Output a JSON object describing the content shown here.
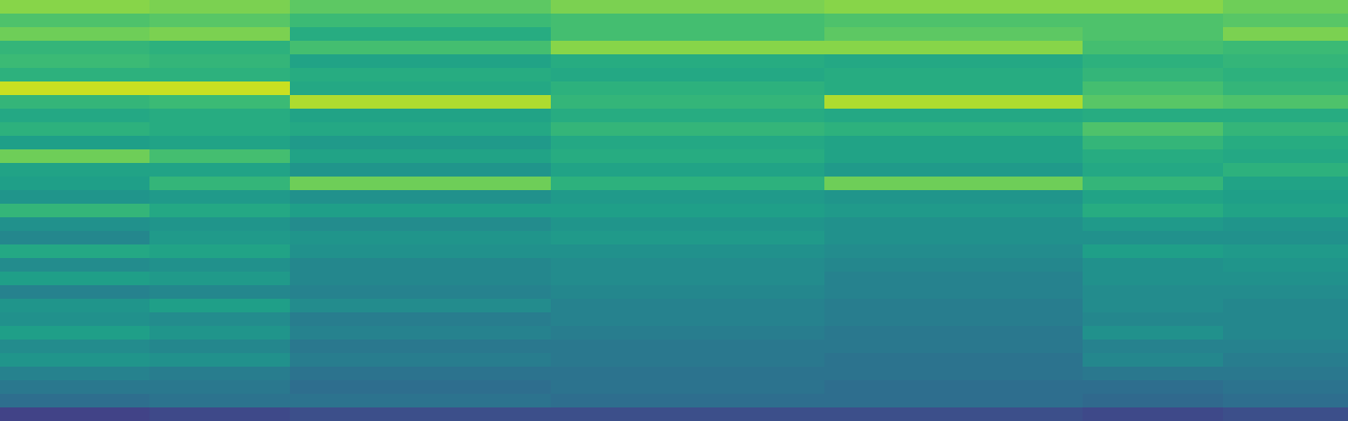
{
  "chart_data": {
    "type": "heatmap",
    "x": [
      0,
      165,
      320,
      608,
      910,
      1195,
      1350,
      1488
    ],
    "y": [
      0,
      15,
      30,
      45,
      60,
      75,
      90,
      105,
      120,
      135,
      150,
      165,
      180,
      195,
      210,
      225,
      240,
      255,
      270,
      285,
      300,
      315,
      330,
      345,
      360,
      375,
      390,
      405,
      420,
      435,
      450,
      465
    ],
    "cells": [
      [
        0.82,
        0.8,
        0.75,
        0.8,
        0.82,
        0.82,
        0.78
      ],
      [
        0.72,
        0.74,
        0.68,
        0.7,
        0.72,
        0.72,
        0.74
      ],
      [
        0.78,
        0.8,
        0.62,
        0.7,
        0.75,
        0.72,
        0.8
      ],
      [
        0.66,
        0.64,
        0.7,
        0.82,
        0.82,
        0.7,
        0.68
      ],
      [
        0.68,
        0.66,
        0.58,
        0.62,
        0.6,
        0.64,
        0.66
      ],
      [
        0.64,
        0.64,
        0.62,
        0.6,
        0.62,
        0.66,
        0.64
      ],
      [
        0.92,
        0.92,
        0.6,
        0.64,
        0.62,
        0.7,
        0.66
      ],
      [
        0.66,
        0.68,
        0.88,
        0.66,
        0.88,
        0.74,
        0.72
      ],
      [
        0.6,
        0.62,
        0.58,
        0.62,
        0.6,
        0.62,
        0.62
      ],
      [
        0.64,
        0.62,
        0.6,
        0.66,
        0.64,
        0.72,
        0.66
      ],
      [
        0.56,
        0.58,
        0.54,
        0.6,
        0.58,
        0.66,
        0.62
      ],
      [
        0.78,
        0.7,
        0.58,
        0.62,
        0.58,
        0.62,
        0.6
      ],
      [
        0.58,
        0.58,
        0.52,
        0.58,
        0.54,
        0.6,
        0.64
      ],
      [
        0.56,
        0.66,
        0.78,
        0.64,
        0.78,
        0.66,
        0.58
      ],
      [
        0.52,
        0.54,
        0.5,
        0.54,
        0.52,
        0.58,
        0.56
      ],
      [
        0.66,
        0.6,
        0.56,
        0.56,
        0.54,
        0.62,
        0.58
      ],
      [
        0.5,
        0.52,
        0.48,
        0.52,
        0.5,
        0.54,
        0.52
      ],
      [
        0.46,
        0.54,
        0.52,
        0.54,
        0.5,
        0.5,
        0.5
      ],
      [
        0.6,
        0.58,
        0.5,
        0.5,
        0.48,
        0.56,
        0.54
      ],
      [
        0.48,
        0.5,
        0.46,
        0.48,
        0.46,
        0.5,
        0.52
      ],
      [
        0.56,
        0.54,
        0.46,
        0.48,
        0.44,
        0.5,
        0.5
      ],
      [
        0.44,
        0.46,
        0.44,
        0.46,
        0.44,
        0.48,
        0.48
      ],
      [
        0.52,
        0.56,
        0.48,
        0.44,
        0.42,
        0.48,
        0.46
      ],
      [
        0.5,
        0.48,
        0.42,
        0.44,
        0.42,
        0.46,
        0.46
      ],
      [
        0.56,
        0.52,
        0.44,
        0.42,
        0.4,
        0.5,
        0.46
      ],
      [
        0.48,
        0.46,
        0.4,
        0.4,
        0.4,
        0.44,
        0.44
      ],
      [
        0.52,
        0.5,
        0.42,
        0.4,
        0.38,
        0.46,
        0.42
      ],
      [
        0.44,
        0.42,
        0.38,
        0.38,
        0.38,
        0.4,
        0.4
      ],
      [
        0.4,
        0.4,
        0.36,
        0.38,
        0.36,
        0.36,
        0.38
      ],
      [
        0.36,
        0.38,
        0.38,
        0.36,
        0.36,
        0.34,
        0.36
      ],
      [
        0.2,
        0.22,
        0.24,
        0.24,
        0.24,
        0.22,
        0.24
      ]
    ],
    "zlim": [
      0,
      1
    ],
    "xlim": [
      0,
      1488
    ],
    "ylim": [
      465,
      0
    ],
    "tick_labels": false,
    "color": "viridis"
  }
}
